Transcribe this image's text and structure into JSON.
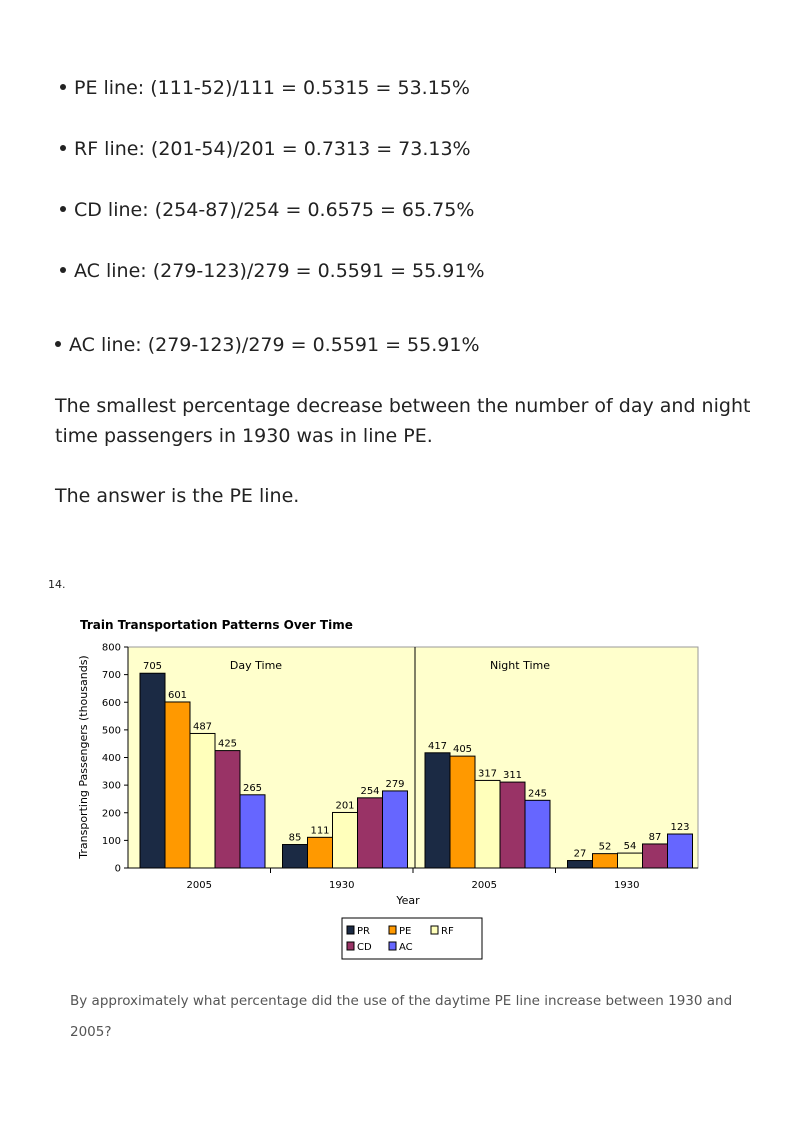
{
  "bullets": [
    "PE line: (111-52)/111 = 0.5315 = 53.15%",
    "RF line: (201-54)/201 = 0.7313 = 73.13%",
    "CD line: (254-87)/254 = 0.6575 = 65.75%",
    "AC line: (279-123)/279 = 0.5591 = 55.91%",
    "AC line: (279-123)/279 = 0.5591 = 55.91%"
  ],
  "conclusion": "The smallest percentage decrease between the number of day and night time passengers in 1930 was in line PE.",
  "answer": "The answer is the PE line.",
  "question_number": "14.",
  "question": "By approximately what percentage did the use of the daytime PE line increase between 1930 and 2005?",
  "chart_data": {
    "type": "bar",
    "title": "Train Transportation Patterns Over Time",
    "xlabel": "Year",
    "ylabel": "Transporting Passengers (thousands)",
    "ylim": [
      0,
      800
    ],
    "yticks": [
      0,
      100,
      200,
      300,
      400,
      500,
      600,
      700,
      800
    ],
    "panels": [
      "Day Time",
      "Night Time"
    ],
    "categories": [
      "2005",
      "1930",
      "2005",
      "1930"
    ],
    "series": [
      {
        "name": "PR",
        "color": "#1b2a44",
        "values": [
          705,
          85,
          417,
          27
        ]
      },
      {
        "name": "PE",
        "color": "#ff9900",
        "values": [
          601,
          111,
          405,
          52
        ]
      },
      {
        "name": "RF",
        "color": "#ffffbb",
        "values": [
          487,
          201,
          317,
          54
        ]
      },
      {
        "name": "CD",
        "color": "#993366",
        "values": [
          425,
          254,
          311,
          87
        ]
      },
      {
        "name": "AC",
        "color": "#6666ff",
        "values": [
          265,
          279,
          245,
          123
        ]
      }
    ],
    "plot_background": "#ffffcc",
    "legend_position": "bottom"
  }
}
